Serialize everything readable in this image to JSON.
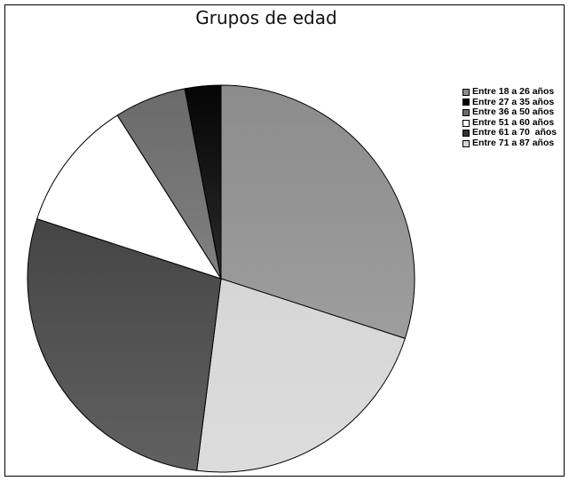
{
  "chart_data": {
    "type": "pie",
    "title": "Grupos de edad",
    "categories": [
      "Entre 18 a 26 años",
      "Entre 71 a 87 años",
      "Entre 61 a 70  años",
      "Entre 51 a 60 años",
      "Entre 36 a 50 años",
      "Entre 27 a 35 años"
    ],
    "values": [
      30,
      22,
      28,
      11,
      6,
      3
    ],
    "colors": [
      "#8c8c8c",
      "#d6d6d6",
      "#454545",
      "#ffffff",
      "#6a6a6a",
      "#050505"
    ],
    "legend_position": "right",
    "legend": [
      {
        "label": "Entre 18 a 26 años",
        "color": "#8c8c8c"
      },
      {
        "label": "Entre 27 a 35 años",
        "color": "#050505"
      },
      {
        "label": "Entre 36 a 50 años",
        "color": "#6a6a6a"
      },
      {
        "label": "Entre 51 a 60 años",
        "color": "#ffffff"
      },
      {
        "label": "Entre 61 a 70  años",
        "color": "#333333"
      },
      {
        "label": "Entre 71 a 87 años",
        "color": "#d6d6d6"
      }
    ]
  }
}
